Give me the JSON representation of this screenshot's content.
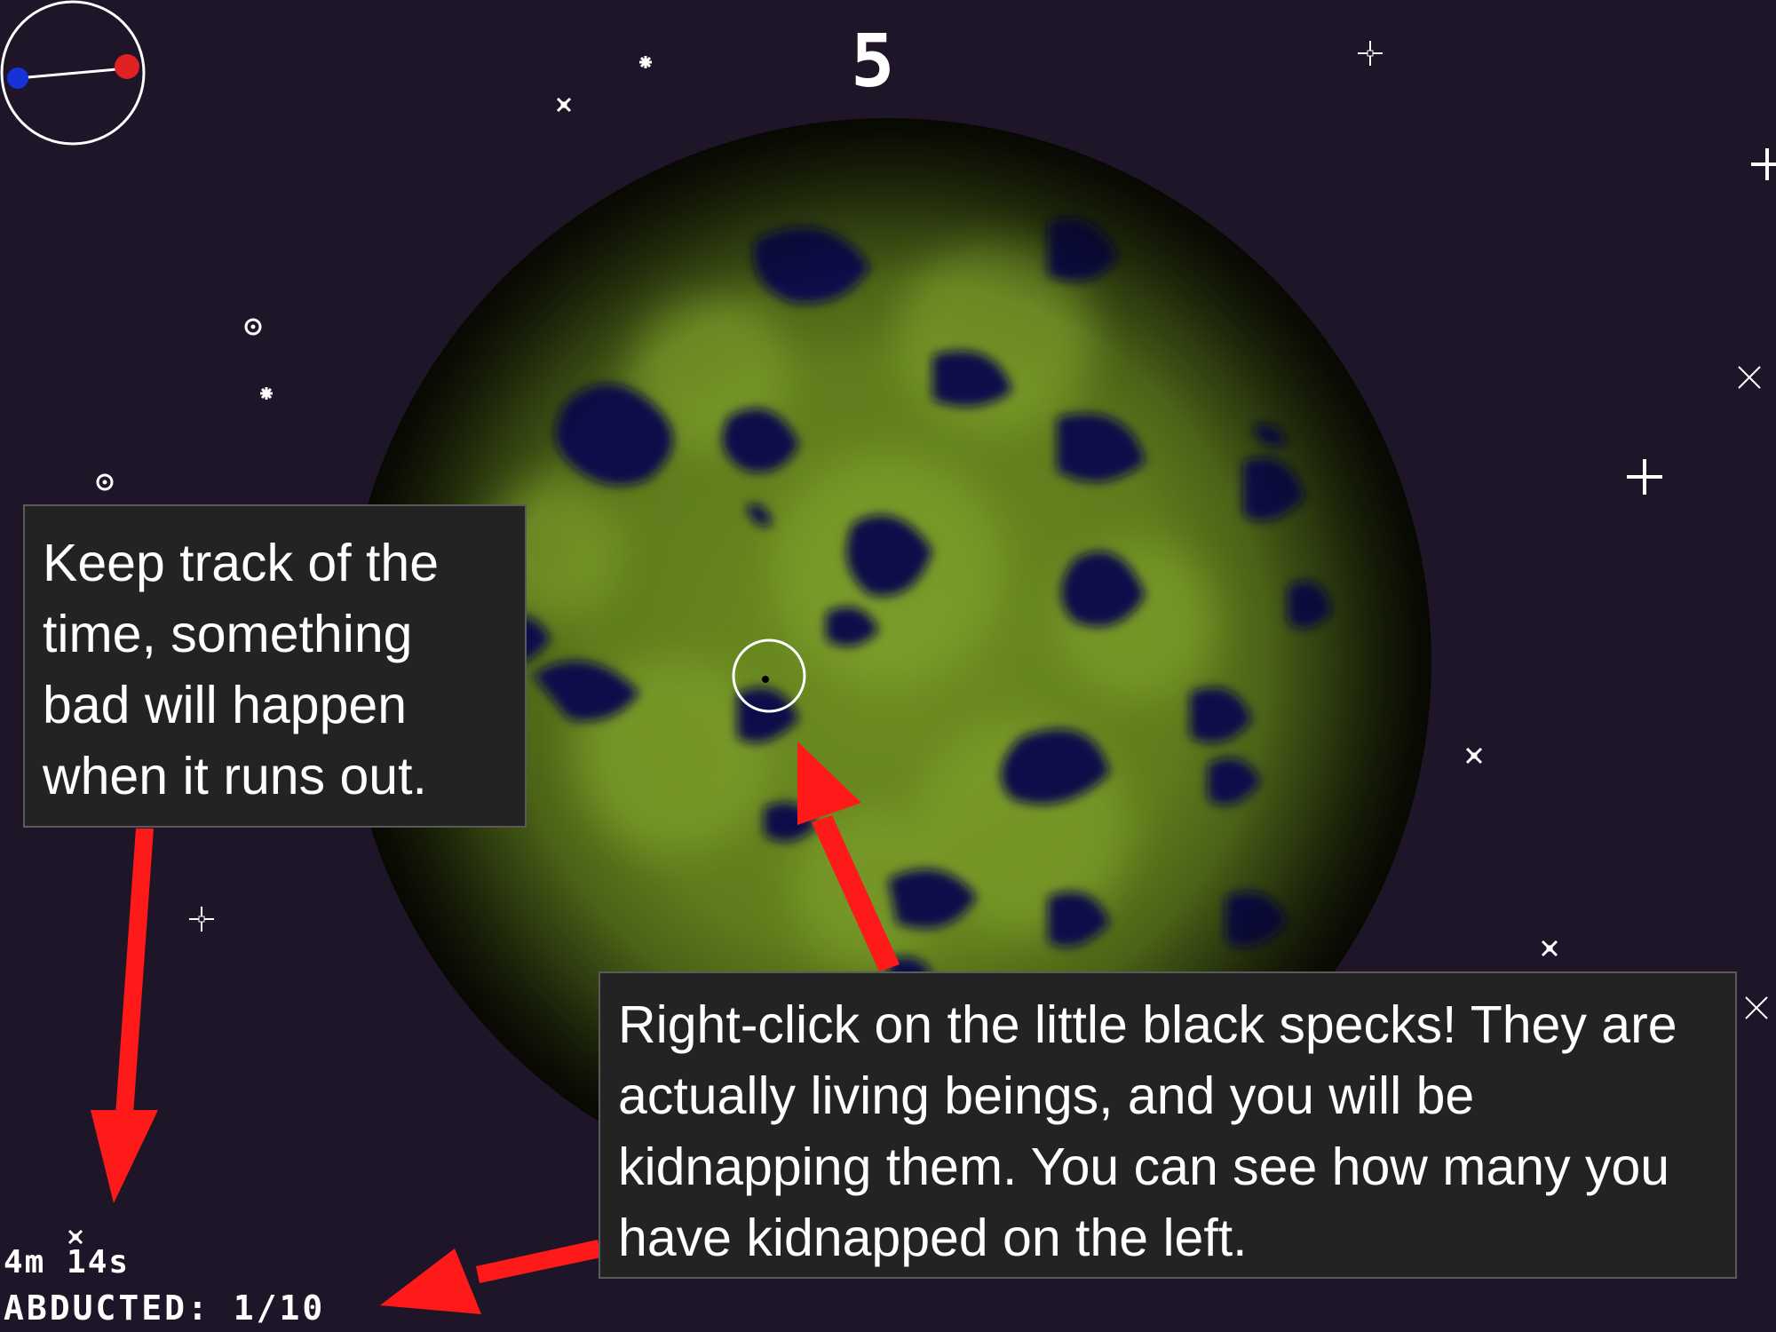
{
  "hud": {
    "level": "5",
    "timer": "4m 14s",
    "abducted_label": "ABDUCTED:",
    "abducted_count": "1/10"
  },
  "callouts": {
    "time": "Keep track of the time, something bad will happen when it runs out.",
    "specks": "Right-click on the little black specks! They are actually living beings, and you will be kidnapping them. You can see how many you have kidnapped on the left."
  },
  "icons": {
    "minimap": "minimap-icon",
    "target": "target-cursor-icon",
    "arrow": "arrow-icon",
    "star": "star-icon"
  },
  "colors": {
    "space": "#1e1528",
    "planet_green": "#6e8e23",
    "planet_water": "#0c0f4a",
    "arrow_red": "#ff1a1a",
    "hud_text": "#ffffff",
    "callout_bg": "#232323"
  }
}
